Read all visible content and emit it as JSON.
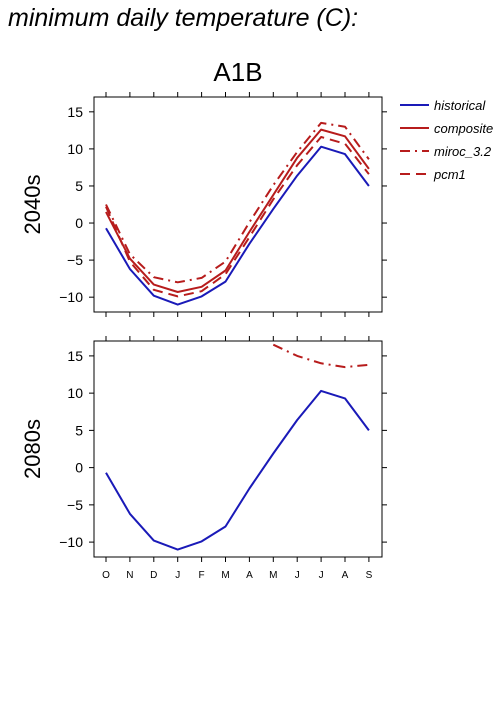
{
  "page": {
    "title": "minimum daily temperature (C):"
  },
  "scenario": "A1B",
  "legend": {
    "items": [
      {
        "label": "historical",
        "color": "#1a1ab8",
        "dash": ""
      },
      {
        "label": "composite",
        "color": "#b71c1c",
        "dash": ""
      },
      {
        "label": "miroc_3.2",
        "color": "#b71c1c",
        "dash": "10,5,2,5"
      },
      {
        "label": "pcm1",
        "color": "#b71c1c",
        "dash": "10,6"
      }
    ]
  },
  "chart_data": {
    "type": "line",
    "categories": [
      "O",
      "N",
      "D",
      "J",
      "F",
      "M",
      "A",
      "M",
      "J",
      "J",
      "A",
      "S"
    ],
    "ylim": [
      -12,
      17
    ],
    "yticks": [
      -10,
      -5,
      0,
      5,
      10,
      15
    ],
    "ytick_labels": [
      "−10",
      "−5",
      "0",
      "5",
      "10",
      "15"
    ],
    "panels": [
      {
        "label": "2040s",
        "series": [
          {
            "name": "historical",
            "values": [
              -0.7,
              -6.2,
              -9.8,
              -11.0,
              -9.9,
              -7.9,
              -2.8,
              1.9,
              6.4,
              10.3,
              9.3,
              5.0
            ]
          },
          {
            "name": "composite",
            "values": [
              1.5,
              -4.8,
              -8.3,
              -9.3,
              -8.6,
              -6.4,
              -1.2,
              3.8,
              8.8,
              12.6,
              11.7,
              7.3
            ]
          },
          {
            "name": "miroc_3.2",
            "values": [
              2.5,
              -4.2,
              -7.3,
              -8.0,
              -7.4,
              -5.2,
              0.1,
              5.1,
              9.6,
              13.5,
              13.0,
              8.6
            ]
          },
          {
            "name": "pcm1",
            "values": [
              2.2,
              -5.2,
              -9.0,
              -9.9,
              -9.2,
              -6.9,
              -1.9,
              3.2,
              7.8,
              11.6,
              10.7,
              6.6
            ]
          }
        ]
      },
      {
        "label": "2080s",
        "series": [
          {
            "name": "historical",
            "values": [
              -0.7,
              -6.2,
              -9.8,
              -11.0,
              -9.9,
              -7.9,
              -2.8,
              1.9,
              6.4,
              10.3,
              9.3,
              5.0
            ]
          },
          {
            "name": "composite",
            "values": [
              null,
              null,
              null,
              null,
              null,
              null,
              null,
              null,
              null,
              null,
              null,
              null
            ]
          },
          {
            "name": "miroc_3.2",
            "values": [
              null,
              null,
              null,
              null,
              null,
              null,
              null,
              16.5,
              15.0,
              14.0,
              13.5,
              13.8
            ]
          },
          {
            "name": "pcm1",
            "values": [
              null,
              null,
              null,
              null,
              null,
              null,
              null,
              null,
              null,
              null,
              null,
              null
            ]
          }
        ]
      }
    ]
  }
}
